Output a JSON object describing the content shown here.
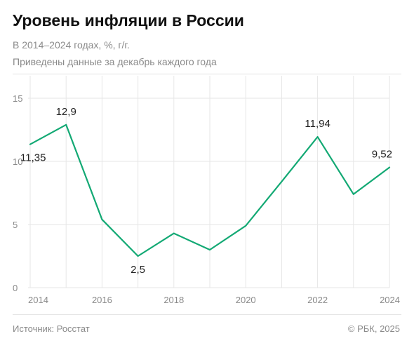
{
  "header": {
    "title": "Уровень инфляции в России",
    "subtitle_1": "В 2014–2024 годах, %, г/г.",
    "subtitle_2": "Приведены данные за декабрь каждого года"
  },
  "footer": {
    "source": "Источник: Росстат",
    "copyright": "© РБК, 2025"
  },
  "colors": {
    "line": "#13a974",
    "grid": "#e6e6e6",
    "axis_text": "#8a8a8a",
    "label_text": "#222222"
  },
  "chart_data": {
    "type": "line",
    "title": "Уровень инфляции в России",
    "x": [
      2014,
      2015,
      2016,
      2017,
      2018,
      2019,
      2020,
      2021,
      2022,
      2023,
      2024
    ],
    "x_tick_labels": [
      "2014",
      "2016",
      "2018",
      "2020",
      "2022",
      "2024"
    ],
    "x_tick_values": [
      2014,
      2016,
      2018,
      2020,
      2022,
      2024
    ],
    "y_tick_labels": [
      "0",
      "5",
      "10",
      "15"
    ],
    "y_tick_values": [
      0,
      5,
      10,
      15
    ],
    "ylim": [
      0,
      15
    ],
    "xlim": [
      2014,
      2024
    ],
    "grid": true,
    "series": [
      {
        "values": [
          11.35,
          12.9,
          5.4,
          2.5,
          4.3,
          3.0,
          4.9,
          8.4,
          11.94,
          7.4,
          9.52
        ]
      }
    ],
    "data_labels": [
      {
        "x": 2014,
        "text": "11,35"
      },
      {
        "x": 2015,
        "text": "12,9"
      },
      {
        "x": 2017,
        "text": "2,5"
      },
      {
        "x": 2022,
        "text": "11,94"
      },
      {
        "x": 2024,
        "text": "9,52"
      }
    ]
  }
}
